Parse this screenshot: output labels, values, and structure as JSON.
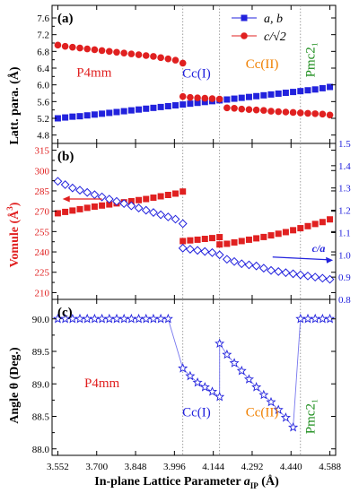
{
  "chart_data": [
    {
      "panel": "(a)",
      "type": "scatter",
      "ylabel": "Latt. para. (Å)",
      "ylim": [
        4.6,
        7.9
      ],
      "yticks": [
        4.8,
        5.2,
        5.6,
        6.0,
        6.4,
        6.8,
        7.2,
        7.6
      ],
      "phase_labels": [
        {
          "text": "P4mm",
          "x": 3.69,
          "y": 6.2,
          "color": "#e02020"
        },
        {
          "text": "Cc(I)",
          "x": 4.08,
          "y": 6.18,
          "color": "#2222dd"
        },
        {
          "text": "Cc(II)",
          "x": 4.33,
          "y": 6.4,
          "color": "#f08000"
        },
        {
          "text": "Pmc2₁",
          "x": 4.53,
          "y": 6.6,
          "color": "#1a8c1a"
        }
      ],
      "legend": [
        {
          "name": "a, b",
          "color": "#2222dd",
          "marker": "square"
        },
        {
          "name": "c/√2",
          "color": "#e02020",
          "marker": "circle"
        }
      ],
      "series": [
        {
          "name": "a, b",
          "color": "#2222dd",
          "marker": "square",
          "points": [
            [
              3.552,
              5.2
            ],
            [
              3.58,
              5.22
            ],
            [
              3.608,
              5.24
            ],
            [
              3.636,
              5.25
            ],
            [
              3.664,
              5.27
            ],
            [
              3.692,
              5.29
            ],
            [
              3.72,
              5.31
            ],
            [
              3.748,
              5.33
            ],
            [
              3.776,
              5.35
            ],
            [
              3.804,
              5.37
            ],
            [
              3.832,
              5.39
            ],
            [
              3.86,
              5.41
            ],
            [
              3.888,
              5.43
            ],
            [
              3.916,
              5.45
            ],
            [
              3.944,
              5.47
            ],
            [
              3.972,
              5.49
            ],
            [
              4.0,
              5.51
            ],
            [
              4.028,
              5.53
            ],
            [
              4.056,
              5.55
            ],
            [
              4.084,
              5.57
            ],
            [
              4.112,
              5.59
            ],
            [
              4.14,
              5.61
            ],
            [
              4.168,
              5.63
            ],
            [
              4.196,
              5.65
            ],
            [
              4.224,
              5.67
            ],
            [
              4.252,
              5.69
            ],
            [
              4.28,
              5.71
            ],
            [
              4.308,
              5.73
            ],
            [
              4.336,
              5.75
            ],
            [
              4.364,
              5.77
            ],
            [
              4.392,
              5.79
            ],
            [
              4.42,
              5.81
            ],
            [
              4.448,
              5.83
            ],
            [
              4.476,
              5.85
            ],
            [
              4.504,
              5.87
            ],
            [
              4.532,
              5.89
            ],
            [
              4.56,
              5.92
            ],
            [
              4.588,
              5.95
            ]
          ]
        },
        {
          "name": "c/√2",
          "color": "#e02020",
          "marker": "circle",
          "points": [
            [
              3.552,
              6.95
            ],
            [
              3.58,
              6.92
            ],
            [
              3.608,
              6.9
            ],
            [
              3.636,
              6.88
            ],
            [
              3.664,
              6.86
            ],
            [
              3.692,
              6.84
            ],
            [
              3.72,
              6.82
            ],
            [
              3.748,
              6.8
            ],
            [
              3.776,
              6.78
            ],
            [
              3.804,
              6.76
            ],
            [
              3.832,
              6.74
            ],
            [
              3.86,
              6.72
            ],
            [
              3.888,
              6.7
            ],
            [
              3.916,
              6.68
            ],
            [
              3.944,
              6.65
            ],
            [
              3.972,
              6.62
            ],
            [
              4.0,
              6.59
            ],
            [
              4.028,
              6.52
            ],
            [
              4.028,
              5.72
            ],
            [
              4.056,
              5.7
            ],
            [
              4.084,
              5.69
            ],
            [
              4.112,
              5.68
            ],
            [
              4.14,
              5.67
            ],
            [
              4.168,
              5.66
            ],
            [
              4.196,
              5.45
            ],
            [
              4.224,
              5.44
            ],
            [
              4.252,
              5.42
            ],
            [
              4.28,
              5.41
            ],
            [
              4.308,
              5.4
            ],
            [
              4.336,
              5.39
            ],
            [
              4.364,
              5.37
            ],
            [
              4.392,
              5.36
            ],
            [
              4.42,
              5.35
            ],
            [
              4.448,
              5.34
            ],
            [
              4.476,
              5.33
            ],
            [
              4.504,
              5.32
            ],
            [
              4.532,
              5.31
            ],
            [
              4.56,
              5.3
            ],
            [
              4.588,
              5.28
            ]
          ]
        }
      ]
    },
    {
      "panel": "(b)",
      "type": "scatter",
      "ylabel": "Vomule (Å³)",
      "ylim": [
        205,
        320
      ],
      "yticks": [
        210,
        225,
        240,
        255,
        270,
        285,
        300,
        315
      ],
      "y2lim": [
        0.8,
        1.5
      ],
      "y2ticks": [
        0.8,
        0.9,
        1.0,
        1.1,
        1.2,
        1.3,
        1.4,
        1.5
      ],
      "y2label": "c/a",
      "series": [
        {
          "name": "Volume",
          "axis": "left",
          "color": "#e02020",
          "marker": "square",
          "points": [
            [
              3.552,
              268.5
            ],
            [
              3.58,
              269.5
            ],
            [
              3.608,
              270.5
            ],
            [
              3.636,
              271.5
            ],
            [
              3.664,
              272.5
            ],
            [
              3.692,
              273.4
            ],
            [
              3.72,
              274.2
            ],
            [
              3.748,
              275.0
            ],
            [
              3.776,
              275.8
            ],
            [
              3.804,
              276.6
            ],
            [
              3.832,
              277.4
            ],
            [
              3.86,
              278.2
            ],
            [
              3.888,
              279.0
            ],
            [
              3.916,
              280.0
            ],
            [
              3.944,
              281.0
            ],
            [
              3.972,
              282.0
            ],
            [
              4.0,
              283.0
            ],
            [
              4.028,
              284.5
            ],
            [
              4.028,
              248.0
            ],
            [
              4.056,
              248.5
            ],
            [
              4.084,
              249.0
            ],
            [
              4.112,
              249.6
            ],
            [
              4.14,
              250.2
            ],
            [
              4.168,
              250.9
            ],
            [
              4.168,
              245.5
            ],
            [
              4.196,
              246.0
            ],
            [
              4.224,
              247.0
            ],
            [
              4.252,
              248.0
            ],
            [
              4.28,
              249.0
            ],
            [
              4.308,
              250.0
            ],
            [
              4.336,
              251.0
            ],
            [
              4.364,
              252.2
            ],
            [
              4.392,
              253.4
            ],
            [
              4.42,
              254.6
            ],
            [
              4.448,
              256.0
            ],
            [
              4.476,
              257.5
            ],
            [
              4.504,
              259.0
            ],
            [
              4.532,
              260.6
            ],
            [
              4.56,
              262.0
            ],
            [
              4.588,
              264.0
            ]
          ]
        },
        {
          "name": "c/a",
          "axis": "right",
          "color": "#2222dd",
          "marker": "diamond",
          "points": [
            [
              3.552,
              1.33
            ],
            [
              3.58,
              1.315
            ],
            [
              3.608,
              1.3
            ],
            [
              3.636,
              1.29
            ],
            [
              3.664,
              1.28
            ],
            [
              3.692,
              1.27
            ],
            [
              3.72,
              1.26
            ],
            [
              3.748,
              1.25
            ],
            [
              3.776,
              1.24
            ],
            [
              3.804,
              1.23
            ],
            [
              3.832,
              1.22
            ],
            [
              3.86,
              1.21
            ],
            [
              3.888,
              1.2
            ],
            [
              3.916,
              1.19
            ],
            [
              3.944,
              1.18
            ],
            [
              3.972,
              1.17
            ],
            [
              4.0,
              1.16
            ],
            [
              4.028,
              1.14
            ],
            [
              4.028,
              1.03
            ],
            [
              4.056,
              1.025
            ],
            [
              4.084,
              1.02
            ],
            [
              4.112,
              1.015
            ],
            [
              4.14,
              1.01
            ],
            [
              4.168,
              1.0
            ],
            [
              4.196,
              0.98
            ],
            [
              4.224,
              0.97
            ],
            [
              4.252,
              0.96
            ],
            [
              4.28,
              0.955
            ],
            [
              4.308,
              0.95
            ],
            [
              4.336,
              0.94
            ],
            [
              4.364,
              0.93
            ],
            [
              4.392,
              0.925
            ],
            [
              4.42,
              0.92
            ],
            [
              4.448,
              0.915
            ],
            [
              4.476,
              0.91
            ],
            [
              4.504,
              0.905
            ],
            [
              4.532,
              0.9
            ],
            [
              4.56,
              0.895
            ],
            [
              4.588,
              0.89
            ]
          ]
        }
      ]
    },
    {
      "panel": "(c)",
      "type": "line",
      "ylabel": "Angle θ (Deg.)",
      "ylim": [
        87.9,
        90.3
      ],
      "yticks": [
        88.0,
        88.5,
        89.0,
        89.5,
        90.0
      ],
      "phase_labels": [
        {
          "text": "P4mm",
          "x": 3.72,
          "y": 88.95,
          "color": "#e02020"
        },
        {
          "text": "Cc(I)",
          "x": 4.08,
          "y": 88.5,
          "color": "#2222dd"
        },
        {
          "text": "Cc(II)",
          "x": 4.33,
          "y": 88.5,
          "color": "#f08000"
        },
        {
          "text": "Pmc2₁",
          "x": 4.53,
          "y": 88.5,
          "color": "#1a8c1a"
        }
      ],
      "series": [
        {
          "name": "Angle",
          "color": "#2222dd",
          "marker": "star",
          "points": [
            [
              3.552,
              90.0
            ],
            [
              3.58,
              90.0
            ],
            [
              3.608,
              90.0
            ],
            [
              3.636,
              90.0
            ],
            [
              3.664,
              90.0
            ],
            [
              3.692,
              90.0
            ],
            [
              3.72,
              90.0
            ],
            [
              3.748,
              90.0
            ],
            [
              3.776,
              90.0
            ],
            [
              3.804,
              90.0
            ],
            [
              3.832,
              90.0
            ],
            [
              3.86,
              90.0
            ],
            [
              3.888,
              90.0
            ],
            [
              3.916,
              90.0
            ],
            [
              3.944,
              90.0
            ],
            [
              3.972,
              90.0
            ],
            [
              4.028,
              89.24
            ],
            [
              4.056,
              89.12
            ],
            [
              4.084,
              89.02
            ],
            [
              4.112,
              88.95
            ],
            [
              4.14,
              88.88
            ],
            [
              4.168,
              88.8
            ],
            [
              4.168,
              89.62
            ],
            [
              4.196,
              89.45
            ],
            [
              4.224,
              89.32
            ],
            [
              4.252,
              89.2
            ],
            [
              4.28,
              89.07
            ],
            [
              4.308,
              88.95
            ],
            [
              4.336,
              88.83
            ],
            [
              4.364,
              88.72
            ],
            [
              4.392,
              88.6
            ],
            [
              4.42,
              88.48
            ],
            [
              4.448,
              88.33
            ],
            [
              4.476,
              90.0
            ],
            [
              4.504,
              90.0
            ],
            [
              4.532,
              90.0
            ],
            [
              4.56,
              90.0
            ],
            [
              4.588,
              90.0
            ]
          ]
        }
      ]
    }
  ],
  "shared_x": {
    "xlim": [
      3.53,
      4.61
    ],
    "xticks": [
      "3.552",
      "3.700",
      "3.848",
      "3.996",
      "4.144",
      "4.292",
      "4.440",
      "4.588"
    ],
    "xtick_values": [
      3.552,
      3.7,
      3.848,
      3.996,
      4.144,
      4.292,
      4.44,
      4.588
    ],
    "phase_boundaries": [
      4.028,
      4.168,
      4.476
    ]
  },
  "xlabel_main": "In-plane Lattice  Parameter ",
  "xlabel_var": "a",
  "xlabel_sub": "IP",
  "xlabel_unit": " (Å)",
  "panel_b_ylabel_main": "Vomule (Å",
  "panel_b_ylabel_sup": "3",
  "panel_b_ylabel_end": ")"
}
